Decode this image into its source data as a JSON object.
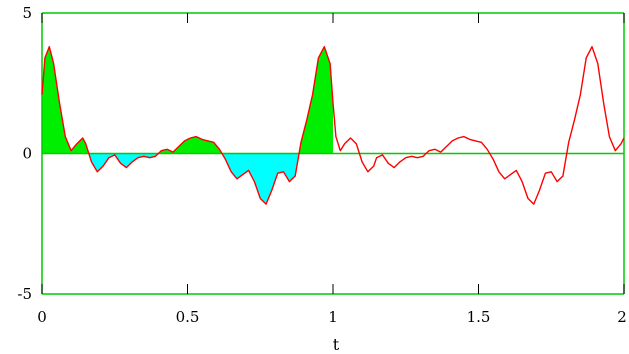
{
  "chart_data": {
    "type": "line",
    "title": "",
    "xlabel": "t",
    "ylabel": "",
    "xlim": [
      0,
      2
    ],
    "ylim": [
      -5,
      5
    ],
    "x_ticks": [
      0,
      0.5,
      1,
      1.5,
      2
    ],
    "x_tick_labels": [
      "0",
      "0.5",
      "1",
      "1.5",
      "2"
    ],
    "y_ticks": [
      5,
      0,
      -5
    ],
    "y_tick_labels": [
      "5",
      "0",
      "-5"
    ],
    "grid": false,
    "colors": {
      "curve": "#ff0000",
      "frame": "#00cc00",
      "zero_line": "#00cc00",
      "positive_fill": "#00ee00",
      "negative_fill": "#00ffff",
      "negative_fill_faint": "#a8f4f8"
    },
    "series": [
      {
        "x": [
          0,
          0.01,
          0.025,
          0.04,
          0.06,
          0.08,
          0.1,
          0.12,
          0.14,
          0.15,
          0.17,
          0.19,
          0.21,
          0.23,
          0.25,
          0.27,
          0.29,
          0.31,
          0.33,
          0.35,
          0.37,
          0.39,
          0.41,
          0.43,
          0.45,
          0.47,
          0.49,
          0.51,
          0.53,
          0.55,
          0.57,
          0.59,
          0.61,
          0.63,
          0.65,
          0.67,
          0.69,
          0.71,
          0.73,
          0.75,
          0.77,
          0.79,
          0.81,
          0.83,
          0.85,
          0.87,
          0.89,
          0.91,
          0.93,
          0.95,
          0.97,
          0.99,
          1.0,
          1.01,
          1.025,
          1.04,
          1.06,
          1.08,
          1.1,
          1.12,
          1.14,
          1.15,
          1.17,
          1.19,
          1.21,
          1.23,
          1.25,
          1.27,
          1.29,
          1.31,
          1.33,
          1.35,
          1.37,
          1.39,
          1.41,
          1.43,
          1.45,
          1.47,
          1.49,
          1.51,
          1.53,
          1.55,
          1.57,
          1.59,
          1.61,
          1.63,
          1.65,
          1.67,
          1.69,
          1.71,
          1.73,
          1.75,
          1.77,
          1.79,
          1.81,
          1.83,
          1.85,
          1.87,
          1.89,
          1.91,
          1.93,
          1.95,
          1.97,
          1.99,
          2.0
        ],
        "y": [
          2.1,
          3.4,
          3.8,
          3.2,
          1.8,
          0.6,
          0.1,
          0.35,
          0.55,
          0.35,
          -0.3,
          -0.65,
          -0.45,
          -0.15,
          -0.05,
          -0.35,
          -0.5,
          -0.3,
          -0.15,
          -0.1,
          -0.15,
          -0.1,
          0.1,
          0.15,
          0.05,
          0.25,
          0.45,
          0.55,
          0.6,
          0.5,
          0.45,
          0.4,
          0.15,
          -0.2,
          -0.65,
          -0.9,
          -0.75,
          -0.6,
          -1.0,
          -1.6,
          -1.8,
          -1.3,
          -0.7,
          -0.65,
          -1.0,
          -0.8,
          0.4,
          1.2,
          2.1,
          3.4,
          3.8,
          3.2,
          1.8,
          0.6,
          0.1,
          0.35,
          0.55,
          0.35,
          -0.3,
          -0.65,
          -0.45,
          -0.15,
          -0.05,
          -0.35,
          -0.5,
          -0.3,
          -0.15,
          -0.1,
          -0.15,
          -0.1,
          0.1,
          0.15,
          0.05,
          0.25,
          0.45,
          0.55,
          0.6,
          0.5,
          0.45,
          0.4,
          0.15,
          -0.2,
          -0.65,
          -0.9,
          -0.75,
          -0.6,
          -1.0,
          -1.6,
          -1.8,
          -1.3,
          -0.7,
          -0.65,
          -1.0,
          -0.8,
          0.4,
          1.2,
          2.1,
          3.4,
          3.8,
          3.2,
          1.8,
          0.6,
          0.1,
          0.35,
          0.55
        ]
      }
    ],
    "shaded_interval": [
      0,
      1
    ]
  }
}
